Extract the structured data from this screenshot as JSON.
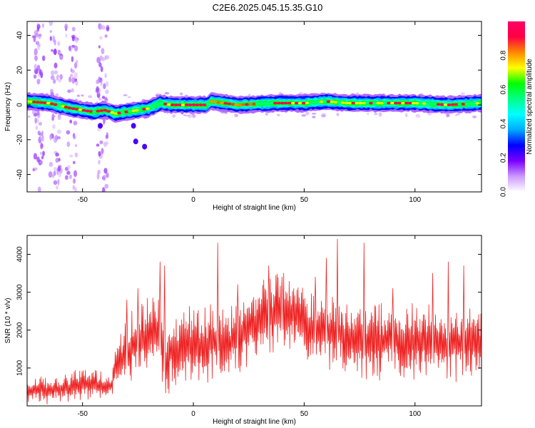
{
  "title": "C2E6.2025.045.15.35.G10",
  "chart_data": [
    {
      "type": "heatmap",
      "xlabel": "Height of straight line (km)",
      "ylabel": "Frequency (Hz)",
      "xlim": [
        -75,
        130
      ],
      "ylim": [
        -50,
        48
      ],
      "x_ticks": [
        -50,
        0,
        50,
        100
      ],
      "y_ticks": [
        -40,
        -20,
        0,
        20,
        40
      ],
      "colorbar": {
        "label": "Normalized spectral amplitude",
        "range": [
          0,
          1
        ],
        "ticks": [
          "0.0",
          "0.2",
          "0.4",
          "0.6",
          "0.8"
        ],
        "colors": [
          "#ffffff",
          "#cc99ff",
          "#7a00ff",
          "#0000ff",
          "#00aaff",
          "#00ffff",
          "#00ff88",
          "#00ff00",
          "#ffff00",
          "#ff8800",
          "#ff0044",
          "#ff0066"
        ]
      },
      "ridge_frequency_hz": [
        {
          "x": -75,
          "y": 2
        },
        {
          "x": -65,
          "y": 1
        },
        {
          "x": -55,
          "y": -2
        },
        {
          "x": -45,
          "y": -4
        },
        {
          "x": -40,
          "y": -3
        },
        {
          "x": -35,
          "y": -5
        },
        {
          "x": -30,
          "y": -4
        },
        {
          "x": -20,
          "y": -2
        },
        {
          "x": -15,
          "y": 1
        },
        {
          "x": -10,
          "y": 0
        },
        {
          "x": 0,
          "y": 0
        },
        {
          "x": 6,
          "y": 0
        },
        {
          "x": 8,
          "y": 2
        },
        {
          "x": 20,
          "y": 0
        },
        {
          "x": 35,
          "y": 1
        },
        {
          "x": 50,
          "y": 1
        },
        {
          "x": 60,
          "y": 2
        },
        {
          "x": 70,
          "y": 1
        },
        {
          "x": 85,
          "y": 1
        },
        {
          "x": 100,
          "y": 1
        },
        {
          "x": 115,
          "y": 0
        },
        {
          "x": 130,
          "y": 1
        }
      ],
      "noise_columns_km": [
        -70,
        -62,
        -55,
        -41
      ],
      "blob_points": [
        {
          "x": -42,
          "y": -12
        },
        {
          "x": -27,
          "y": -12
        },
        {
          "x": -26,
          "y": -21
        },
        {
          "x": -22,
          "y": -24
        }
      ]
    },
    {
      "type": "line",
      "xlabel": "Height of straight line (km)",
      "ylabel": "SNR (10 * v/v)",
      "xlim": [
        -75,
        130
      ],
      "ylim": [
        0,
        4500
      ],
      "x_ticks": [
        -50,
        0,
        50,
        100
      ],
      "y_ticks": [
        1000,
        2000,
        3000,
        4000
      ],
      "color": "#ee2222",
      "series": [
        {
          "x": [
            -75,
            -70,
            -65,
            -60,
            -55,
            -50,
            -45,
            -40,
            -37,
            -35,
            -30,
            -25,
            -20,
            -15,
            -12,
            -10,
            -5,
            0,
            5,
            10,
            15,
            20,
            25,
            30,
            35,
            40,
            45,
            50,
            55,
            60,
            65,
            70,
            75,
            80,
            85,
            90,
            95,
            100,
            105,
            110,
            115,
            120,
            125,
            130
          ],
          "y": [
            350,
            450,
            400,
            450,
            500,
            550,
            550,
            500,
            550,
            1100,
            1400,
            1700,
            1900,
            1750,
            1200,
            1400,
            1600,
            1650,
            1600,
            1700,
            1500,
            1900,
            2100,
            2300,
            2400,
            2500,
            2400,
            2200,
            1900,
            2000,
            2000,
            1800,
            1700,
            1750,
            1700,
            1800,
            1600,
            1700,
            1800,
            1700,
            1600,
            1700,
            1650,
            1700
          ],
          "amplitude": [
            350,
            350,
            350,
            350,
            400,
            400,
            400,
            350,
            300,
            700,
            900,
            1000,
            1000,
            1000,
            900,
            1000,
            1000,
            1000,
            1000,
            1000,
            1000,
            1000,
            1000,
            1000,
            1000,
            1000,
            1000,
            1000,
            1000,
            1000,
            1000,
            1000,
            1000,
            1000,
            1000,
            1000,
            1000,
            1000,
            1000,
            1000,
            1000,
            1000,
            1000,
            1000
          ]
        }
      ],
      "peaks": [
        {
          "x": -30,
          "y": 2800
        },
        {
          "x": -25,
          "y": 3100
        },
        {
          "x": -15,
          "y": 3800
        },
        {
          "x": -13,
          "y": 3700
        },
        {
          "x": 11,
          "y": 4300
        },
        {
          "x": 20,
          "y": 3200
        },
        {
          "x": 34,
          "y": 3700
        },
        {
          "x": 40,
          "y": 3400
        },
        {
          "x": 55,
          "y": 3400
        },
        {
          "x": 60,
          "y": 3900
        },
        {
          "x": 65,
          "y": 4400
        },
        {
          "x": 77,
          "y": 4300
        },
        {
          "x": 90,
          "y": 3100
        },
        {
          "x": 108,
          "y": 3500
        },
        {
          "x": 115,
          "y": 3800
        },
        {
          "x": 122,
          "y": 3700
        }
      ]
    }
  ]
}
